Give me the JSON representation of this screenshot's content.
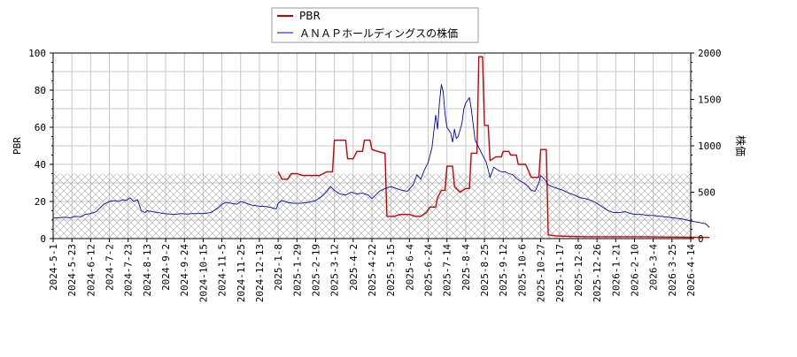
{
  "chart_data": {
    "type": "line",
    "title": "",
    "legend": {
      "placement": "top",
      "entries": [
        {
          "name": "PBR",
          "color": "#cc0000"
        },
        {
          "name": "ＡＮＡＰホールディングスの株価",
          "color": "#0000cc"
        }
      ]
    },
    "xlabel": "",
    "ylabel_left": "PBR",
    "ylabel_right": "株価",
    "ylim_left": [
      0,
      100
    ],
    "ylim_right": [
      0,
      2000
    ],
    "y_ticks_left": [
      "0",
      "20",
      "40",
      "60",
      "80",
      "100"
    ],
    "y_ticks_right": [
      "0",
      "500",
      "1000",
      "1500",
      "2000"
    ],
    "x_ticks": [
      "2024-5-1",
      "2024-5-23",
      "2024-6-12",
      "2024-7-2",
      "2024-7-23",
      "2024-8-13",
      "2024-9-2",
      "2024-9-24",
      "2024-10-15",
      "2024-11-5",
      "2024-11-25",
      "2024-12-13",
      "2025-1-8",
      "2025-1-29",
      "2025-2-19",
      "2025-3-12",
      "2025-4-2",
      "2025-4-22",
      "2025-5-15",
      "2025-6-4",
      "2025-6-24",
      "2025-7-14",
      "2025-8-4",
      "2025-8-25",
      "2025-9-12",
      "2025-10-6",
      "2025-10-27",
      "2025-11-17",
      "2025-12-8",
      "2025-12-26",
      "2026-1-21",
      "2026-2-10",
      "2026-3-4",
      "2026-3-25",
      "2026-4-14"
    ],
    "grid": true,
    "hatched_band_right_units": [
      0,
      700
    ],
    "series": [
      {
        "name": "PBR",
        "axis": "left",
        "color": "#cc0000",
        "points": [
          [
            12.0,
            36
          ],
          [
            12.2,
            32
          ],
          [
            12.5,
            32
          ],
          [
            12.7,
            35
          ],
          [
            13.0,
            35
          ],
          [
            13.3,
            34
          ],
          [
            13.8,
            34
          ],
          [
            14.2,
            34
          ],
          [
            14.6,
            36
          ],
          [
            14.9,
            36
          ],
          [
            15.0,
            53
          ],
          [
            15.6,
            53
          ],
          [
            15.7,
            43
          ],
          [
            16.0,
            43
          ],
          [
            16.2,
            47
          ],
          [
            16.5,
            47
          ],
          [
            16.6,
            53
          ],
          [
            16.9,
            53
          ],
          [
            17.0,
            48
          ],
          [
            17.3,
            47
          ],
          [
            17.7,
            46
          ],
          [
            17.8,
            12
          ],
          [
            18.2,
            12
          ],
          [
            18.5,
            13
          ],
          [
            19.0,
            13
          ],
          [
            19.3,
            12
          ],
          [
            19.6,
            12
          ],
          [
            19.9,
            14
          ],
          [
            20.1,
            17
          ],
          [
            20.4,
            17
          ],
          [
            20.5,
            22
          ],
          [
            20.7,
            26
          ],
          [
            20.9,
            26
          ],
          [
            21.0,
            39
          ],
          [
            21.3,
            39
          ],
          [
            21.4,
            28
          ],
          [
            21.7,
            25
          ],
          [
            22.0,
            27
          ],
          [
            22.2,
            27
          ],
          [
            22.3,
            46
          ],
          [
            22.6,
            46
          ],
          [
            22.7,
            98
          ],
          [
            22.9,
            98
          ],
          [
            23.0,
            61
          ],
          [
            23.2,
            61
          ],
          [
            23.3,
            42
          ],
          [
            23.6,
            44
          ],
          [
            23.9,
            44
          ],
          [
            24.0,
            47
          ],
          [
            24.3,
            47
          ],
          [
            24.4,
            45
          ],
          [
            24.7,
            45
          ],
          [
            24.8,
            40
          ],
          [
            25.2,
            40
          ],
          [
            25.5,
            33
          ],
          [
            25.9,
            33
          ],
          [
            26.0,
            48
          ],
          [
            26.3,
            48
          ],
          [
            26.4,
            2
          ],
          [
            26.8,
            1.5
          ],
          [
            27.5,
            1.2
          ],
          [
            28.5,
            1.0
          ],
          [
            30.0,
            1.0
          ],
          [
            31.5,
            1.0
          ],
          [
            33.0,
            0.8
          ],
          [
            34.0,
            0.7
          ],
          [
            35.0,
            0.6
          ]
        ]
      },
      {
        "name": "ＡＮＡＰホールディングスの株価",
        "axis": "right",
        "color": "#0000cc",
        "points": [
          [
            0.0,
            220
          ],
          [
            0.3,
            225
          ],
          [
            0.6,
            230
          ],
          [
            0.9,
            225
          ],
          [
            1.2,
            240
          ],
          [
            1.5,
            235
          ],
          [
            1.7,
            260
          ],
          [
            2.0,
            270
          ],
          [
            2.3,
            290
          ],
          [
            2.5,
            330
          ],
          [
            2.7,
            370
          ],
          [
            3.0,
            400
          ],
          [
            3.3,
            410
          ],
          [
            3.5,
            400
          ],
          [
            3.7,
            420
          ],
          [
            3.9,
            410
          ],
          [
            4.1,
            440
          ],
          [
            4.3,
            400
          ],
          [
            4.5,
            420
          ],
          [
            4.7,
            300
          ],
          [
            4.9,
            280
          ],
          [
            5.0,
            300
          ],
          [
            5.3,
            290
          ],
          [
            5.6,
            280
          ],
          [
            5.9,
            270
          ],
          [
            6.2,
            265
          ],
          [
            6.5,
            260
          ],
          [
            6.8,
            270
          ],
          [
            7.1,
            265
          ],
          [
            7.5,
            270
          ],
          [
            8.0,
            270
          ],
          [
            8.4,
            280
          ],
          [
            8.8,
            330
          ],
          [
            9.0,
            370
          ],
          [
            9.2,
            390
          ],
          [
            9.5,
            380
          ],
          [
            9.8,
            370
          ],
          [
            10.0,
            400
          ],
          [
            10.3,
            380
          ],
          [
            10.6,
            360
          ],
          [
            11.0,
            350
          ],
          [
            11.4,
            345
          ],
          [
            11.7,
            330
          ],
          [
            11.9,
            320
          ],
          [
            12.0,
            380
          ],
          [
            12.2,
            410
          ],
          [
            12.5,
            390
          ],
          [
            12.8,
            380
          ],
          [
            13.2,
            380
          ],
          [
            13.6,
            390
          ],
          [
            14.0,
            410
          ],
          [
            14.3,
            450
          ],
          [
            14.6,
            510
          ],
          [
            14.8,
            560
          ],
          [
            15.0,
            520
          ],
          [
            15.3,
            480
          ],
          [
            15.6,
            470
          ],
          [
            15.9,
            500
          ],
          [
            16.2,
            480
          ],
          [
            16.5,
            490
          ],
          [
            16.8,
            470
          ],
          [
            17.0,
            430
          ],
          [
            17.2,
            470
          ],
          [
            17.4,
            510
          ],
          [
            17.7,
            540
          ],
          [
            18.0,
            560
          ],
          [
            18.3,
            540
          ],
          [
            18.6,
            520
          ],
          [
            18.9,
            510
          ],
          [
            19.2,
            580
          ],
          [
            19.4,
            690
          ],
          [
            19.6,
            640
          ],
          [
            19.8,
            740
          ],
          [
            20.0,
            820
          ],
          [
            20.2,
            980
          ],
          [
            20.4,
            1330
          ],
          [
            20.5,
            1180
          ],
          [
            20.6,
            1460
          ],
          [
            20.7,
            1660
          ],
          [
            20.8,
            1580
          ],
          [
            20.9,
            1340
          ],
          [
            21.0,
            1200
          ],
          [
            21.2,
            1140
          ],
          [
            21.3,
            1040
          ],
          [
            21.4,
            1180
          ],
          [
            21.5,
            1080
          ],
          [
            21.6,
            1100
          ],
          [
            21.8,
            1240
          ],
          [
            21.9,
            1400
          ],
          [
            22.0,
            1460
          ],
          [
            22.2,
            1520
          ],
          [
            22.3,
            1400
          ],
          [
            22.5,
            1060
          ],
          [
            22.7,
            980
          ],
          [
            22.9,
            900
          ],
          [
            23.1,
            820
          ],
          [
            23.3,
            660
          ],
          [
            23.5,
            770
          ],
          [
            23.7,
            740
          ],
          [
            23.9,
            720
          ],
          [
            24.1,
            720
          ],
          [
            24.3,
            700
          ],
          [
            24.5,
            690
          ],
          [
            24.7,
            650
          ],
          [
            24.9,
            620
          ],
          [
            25.1,
            600
          ],
          [
            25.3,
            570
          ],
          [
            25.5,
            520
          ],
          [
            25.7,
            510
          ],
          [
            25.9,
            600
          ],
          [
            26.0,
            680
          ],
          [
            26.2,
            640
          ],
          [
            26.4,
            580
          ],
          [
            26.6,
            560
          ],
          [
            26.9,
            540
          ],
          [
            27.2,
            520
          ],
          [
            27.5,
            490
          ],
          [
            27.8,
            470
          ],
          [
            28.1,
            440
          ],
          [
            28.4,
            430
          ],
          [
            28.7,
            410
          ],
          [
            29.0,
            380
          ],
          [
            29.3,
            340
          ],
          [
            29.6,
            300
          ],
          [
            29.9,
            280
          ],
          [
            30.2,
            280
          ],
          [
            30.5,
            290
          ],
          [
            30.8,
            270
          ],
          [
            31.1,
            260
          ],
          [
            31.4,
            260
          ],
          [
            31.7,
            250
          ],
          [
            32.0,
            250
          ],
          [
            32.4,
            240
          ],
          [
            32.8,
            230
          ],
          [
            33.2,
            220
          ],
          [
            33.6,
            210
          ],
          [
            34.0,
            190
          ],
          [
            34.4,
            175
          ],
          [
            34.8,
            160
          ],
          [
            35.0,
            120
          ]
        ]
      }
    ]
  }
}
